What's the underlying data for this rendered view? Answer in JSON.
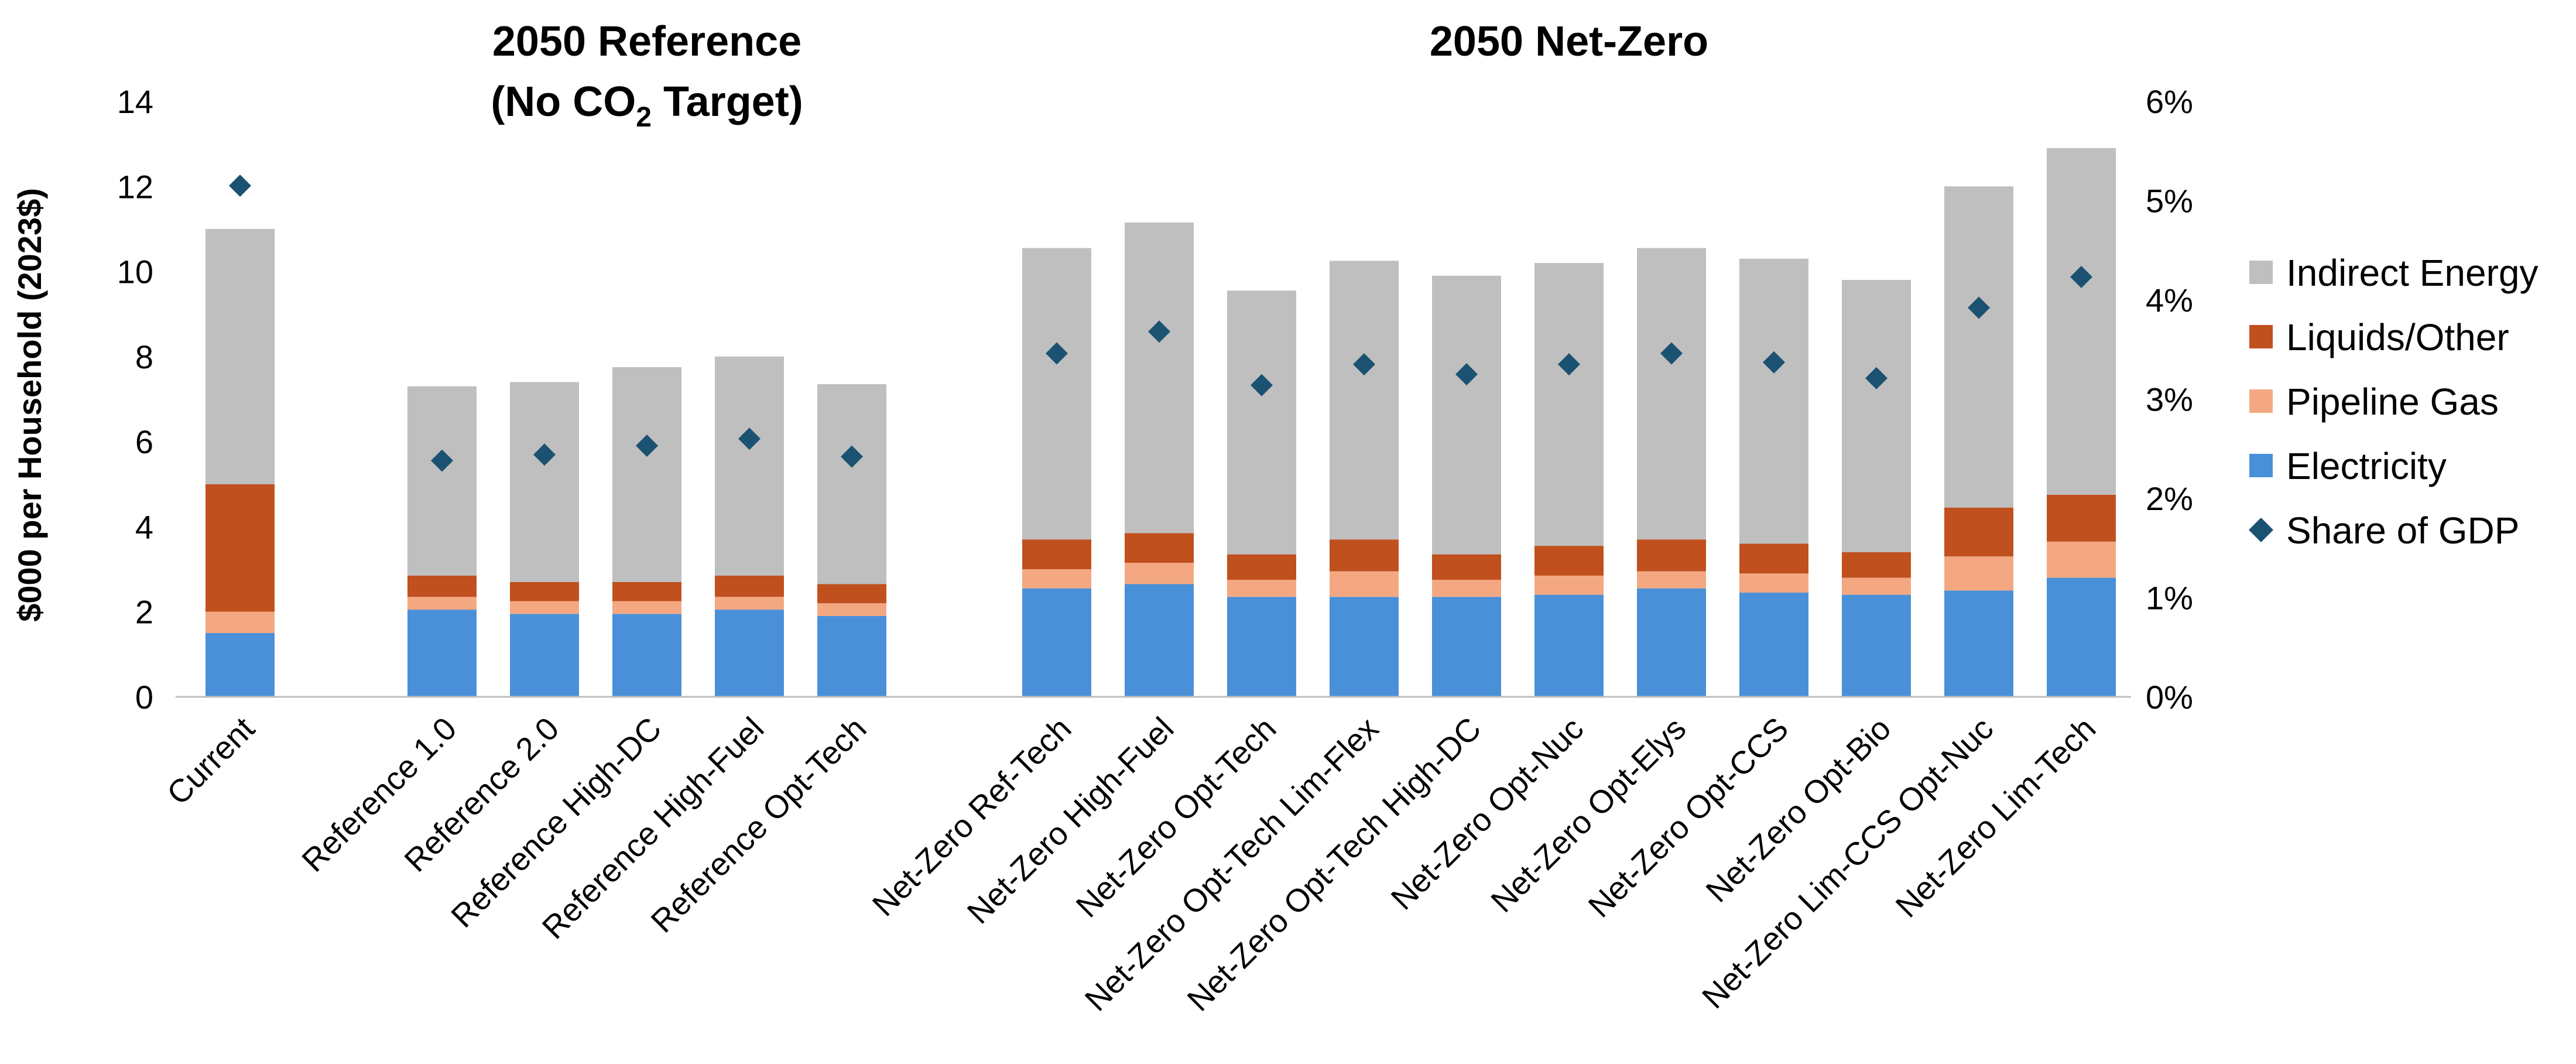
{
  "chart_data": {
    "type": "bar",
    "stacked": true,
    "group_titles": [
      {
        "lines": [
          "2050 Reference",
          "(No CO",
          "2",
          " Target)"
        ],
        "first_index": 1,
        "last_index": 5
      },
      {
        "lines": [
          "2050 Net-Zero"
        ],
        "first_index": 6,
        "last_index": 16
      }
    ],
    "ylabel": "$000 per Household (2023$)",
    "ylim": [
      0,
      14
    ],
    "yticks": [
      "0",
      "2",
      "4",
      "6",
      "8",
      "10",
      "12",
      "14"
    ],
    "y2lim": [
      0,
      6
    ],
    "y2ticks": [
      "0%",
      "1%",
      "2%",
      "3%",
      "4%",
      "5%",
      "6%"
    ],
    "grid": false,
    "legend_position": "right",
    "categories": [
      "Current",
      "Reference 1.0",
      "Reference 2.0",
      "Reference High-DC",
      "Reference High-Fuel",
      "Reference Opt-Tech",
      "Net-Zero Ref-Tech",
      "Net-Zero High-Fuel",
      "Net-Zero Opt-Tech",
      "Net-Zero Opt-Tech Lim-Flex",
      "Net-Zero Opt-Tech High-DC",
      "Net-Zero Opt-Nuc",
      "Net-Zero Opt-Elys",
      "Net-Zero Opt-CCS",
      "Net-Zero Opt-Bio",
      "Net-Zero Lim-CCS Opt-Nuc",
      "Net-Zero Lim-Tech"
    ],
    "series": [
      {
        "name": "Electricity",
        "kind": "bar",
        "color": "#4A90D9",
        "values": [
          1.5,
          2.05,
          1.95,
          1.95,
          2.05,
          1.9,
          2.55,
          2.65,
          2.35,
          2.35,
          2.35,
          2.4,
          2.55,
          2.45,
          2.4,
          2.5,
          2.8
        ]
      },
      {
        "name": "Pipeline Gas",
        "kind": "bar",
        "color": "#F4A882",
        "values": [
          0.5,
          0.3,
          0.3,
          0.3,
          0.3,
          0.3,
          0.45,
          0.5,
          0.4,
          0.6,
          0.4,
          0.45,
          0.4,
          0.45,
          0.4,
          0.8,
          0.85
        ]
      },
      {
        "name": "Liquids/Other",
        "kind": "bar",
        "color": "#C0501E",
        "values": [
          3.0,
          0.5,
          0.45,
          0.45,
          0.5,
          0.45,
          0.7,
          0.7,
          0.6,
          0.75,
          0.6,
          0.7,
          0.75,
          0.7,
          0.6,
          1.15,
          1.1
        ]
      },
      {
        "name": "Indirect Energy",
        "kind": "bar",
        "color": "#BFBFBF",
        "values": [
          6.0,
          4.45,
          4.7,
          5.05,
          5.15,
          4.7,
          6.85,
          7.3,
          6.2,
          6.55,
          6.55,
          6.65,
          6.85,
          6.7,
          6.4,
          7.55,
          8.15
        ]
      },
      {
        "name": "Share of GDP",
        "kind": "marker",
        "axis": "right",
        "color": "#1B5272",
        "values": [
          5.15,
          2.38,
          2.44,
          2.53,
          2.6,
          2.42,
          3.46,
          3.68,
          3.14,
          3.35,
          3.25,
          3.35,
          3.46,
          3.37,
          3.21,
          3.92,
          4.23
        ]
      }
    ],
    "legend_order": [
      "Indirect Energy",
      "Liquids/Other",
      "Pipeline Gas",
      "Electricity",
      "Share of GDP"
    ]
  }
}
